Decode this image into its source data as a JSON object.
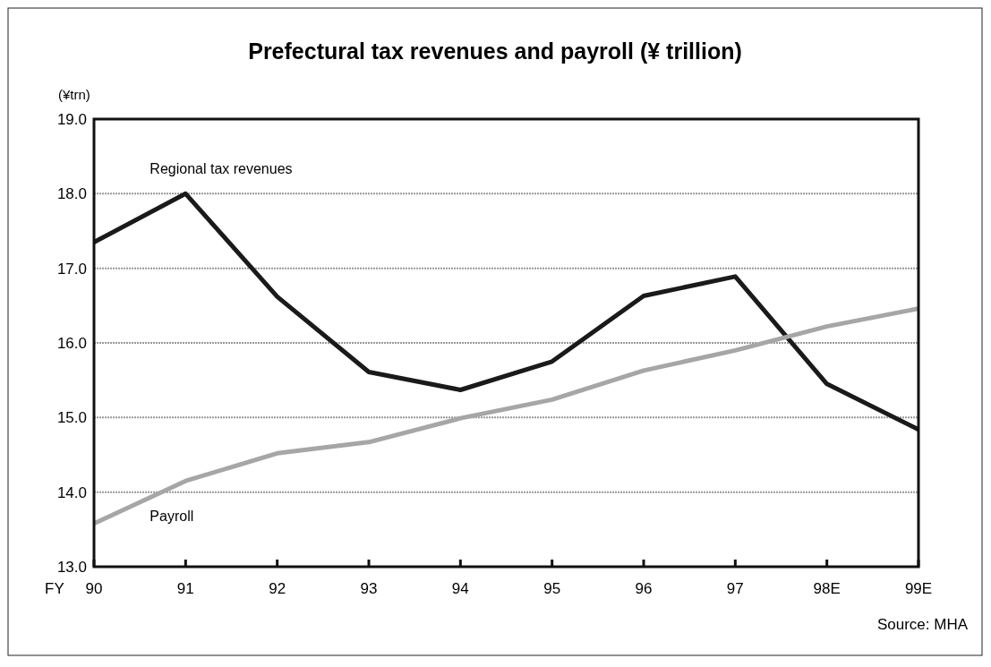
{
  "chart_data": {
    "type": "line",
    "title": "Prefectural tax revenues and payroll (¥ trillion)",
    "ylabel": "(¥trn)",
    "xlabel": "FY",
    "categories": [
      "90",
      "91",
      "92",
      "93",
      "94",
      "95",
      "96",
      "97",
      "98E",
      "99E"
    ],
    "series": [
      {
        "name": "Regional tax revenues",
        "color": "#1a1a1a",
        "values": [
          17.35,
          18.0,
          16.62,
          15.61,
          15.37,
          15.75,
          16.63,
          16.89,
          15.45,
          14.84
        ]
      },
      {
        "name": "Payroll",
        "color": "#a6a6a6",
        "values": [
          13.58,
          14.15,
          14.52,
          14.67,
          14.99,
          15.24,
          15.63,
          15.9,
          16.22,
          16.46
        ]
      }
    ],
    "ylim": [
      13,
      19
    ],
    "yticks": [
      {
        "value": 13,
        "label": "13.0"
      },
      {
        "value": 14,
        "label": "14.0"
      },
      {
        "value": 15,
        "label": "15.0"
      },
      {
        "value": 16,
        "label": "16.0"
      },
      {
        "value": 17,
        "label": "17.0"
      },
      {
        "value": 18,
        "label": "18.0"
      },
      {
        "value": 19,
        "label": "19.0"
      }
    ],
    "grid": "y",
    "legend": false,
    "marker": "none",
    "line_style": "solid",
    "annotations": [
      "Source: MHA"
    ]
  }
}
